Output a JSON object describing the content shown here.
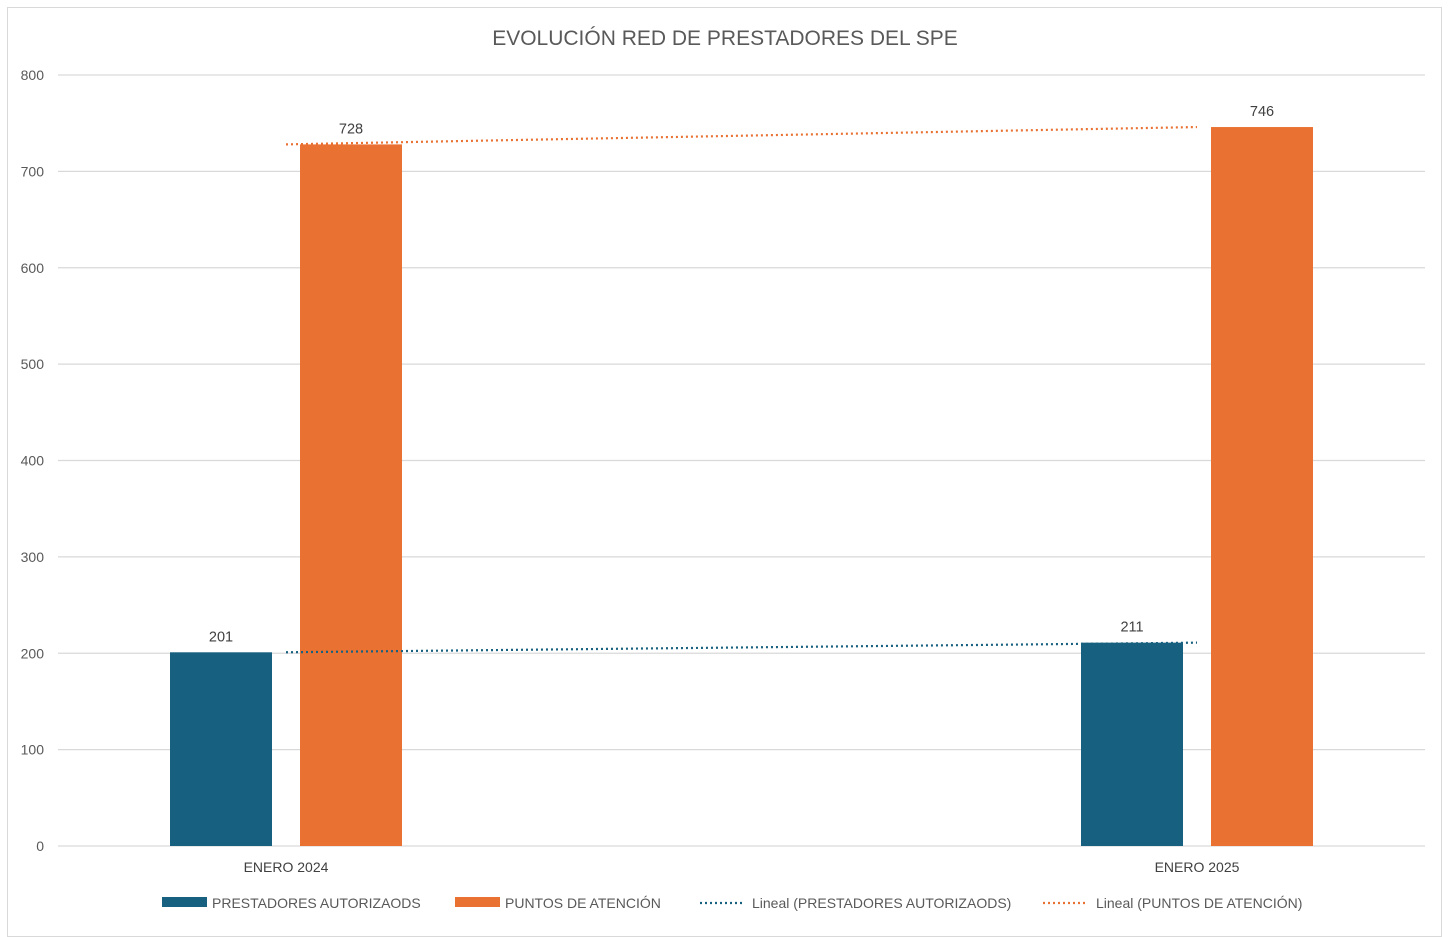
{
  "chart_data": {
    "type": "bar",
    "title": "EVOLUCIÓN RED DE PRESTADORES DEL SPE",
    "xlabel": "",
    "ylabel": "",
    "categories": [
      "ENERO 2024",
      "ENERO 2025"
    ],
    "series": [
      {
        "name": "PRESTADORES AUTORIZAODS",
        "values": [
          201,
          211
        ],
        "color": "#17607f"
      },
      {
        "name": "PUNTOS DE ATENCIÓN",
        "values": [
          728,
          746
        ],
        "color": "#e97132"
      }
    ],
    "trendlines": [
      {
        "name": "Lineal (PRESTADORES AUTORIZAODS)",
        "type": "linear",
        "series": 0,
        "color": "#17607f",
        "style": "dotted"
      },
      {
        "name": "Lineal (PUNTOS DE ATENCIÓN)",
        "type": "linear",
        "series": 1,
        "color": "#e97132",
        "style": "dotted"
      }
    ],
    "data_labels": true,
    "ylim": [
      0,
      800
    ],
    "yticks": [
      0,
      100,
      200,
      300,
      400,
      500,
      600,
      700,
      800
    ],
    "grid": true,
    "legend_position": "bottom",
    "gridline_color": "#d9d9d9"
  }
}
